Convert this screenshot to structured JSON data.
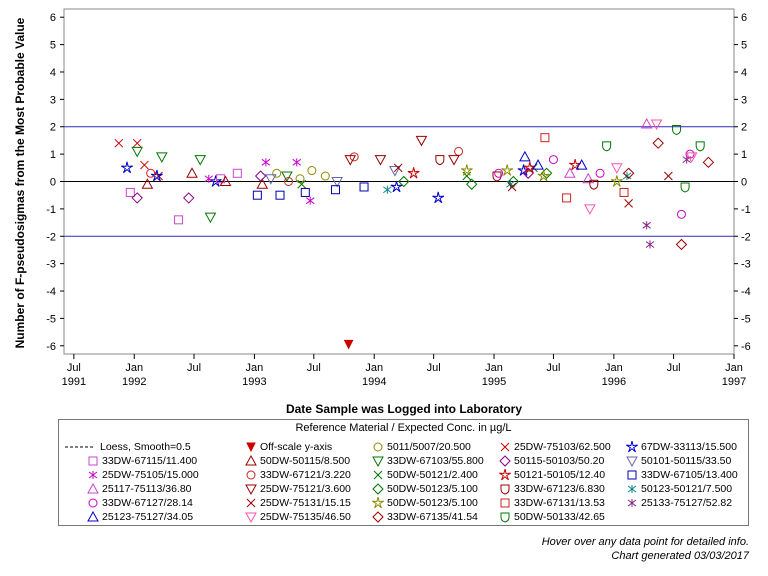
{
  "chart_data": {
    "type": "scatter",
    "title": "",
    "xlabel": "Date Sample was Logged into Laboratory",
    "ylabel": "Number of F-pseudosigmas from the Most Probable Value",
    "ylim": [
      -6.3,
      6.3
    ],
    "yticks": [
      -6,
      -5,
      -4,
      -3,
      -2,
      -1,
      0,
      1,
      2,
      3,
      4,
      5,
      6
    ],
    "xlim": [
      "1991-06-01",
      "1997-01-01"
    ],
    "xticks": [
      {
        "date": "1991-07-01",
        "month": "Jul",
        "year": "1991"
      },
      {
        "date": "1992-01-01",
        "month": "Jan",
        "year": "1992"
      },
      {
        "date": "1992-07-01",
        "month": "Jul",
        "year": ""
      },
      {
        "date": "1993-01-01",
        "month": "Jan",
        "year": "1993"
      },
      {
        "date": "1993-07-01",
        "month": "Jul",
        "year": ""
      },
      {
        "date": "1994-01-01",
        "month": "Jan",
        "year": "1994"
      },
      {
        "date": "1994-07-01",
        "month": "Jul",
        "year": ""
      },
      {
        "date": "1995-01-01",
        "month": "Jan",
        "year": "1995"
      },
      {
        "date": "1995-07-01",
        "month": "Jul",
        "year": ""
      },
      {
        "date": "1996-01-01",
        "month": "Jan",
        "year": "1996"
      },
      {
        "date": "1996-07-01",
        "month": "Jul",
        "year": ""
      },
      {
        "date": "1997-01-01",
        "month": "Jan",
        "year": "1997"
      }
    ],
    "reference_lines": [
      2,
      -2
    ],
    "zero_line": 0,
    "grid": false,
    "legend_title": "Reference Material / Expected Conc. in µg/L",
    "legend_placement": "bottom",
    "series": [
      {
        "name": "Loess, Smooth=0.5",
        "marker": "dash",
        "color": "#000000",
        "points": []
      },
      {
        "name": "Off-scale y-axis",
        "marker": "triangle-down-filled",
        "color": "#cc0000",
        "points": [
          [
            "1993-10-15",
            -5.95
          ]
        ]
      },
      {
        "name": "5011/5007/20.500",
        "marker": "circle",
        "color": "#8c8c00",
        "points": [
          [
            "1993-03-10",
            0.3
          ],
          [
            "1993-05-20",
            0.1
          ],
          [
            "1993-06-25",
            0.4
          ],
          [
            "1993-08-05",
            0.2
          ]
        ]
      },
      {
        "name": "25DW-75103/62.500",
        "marker": "x",
        "color": "#cc0000",
        "points": [
          [
            "1991-11-15",
            1.4
          ],
          [
            "1992-01-10",
            1.4
          ],
          [
            "1992-02-01",
            0.6
          ],
          [
            "1992-03-15",
            0.2
          ]
        ]
      },
      {
        "name": "67DW-33113/15.500",
        "marker": "star",
        "color": "#0000cc",
        "points": [
          [
            "1991-12-10",
            0.5
          ],
          [
            "1992-03-10",
            0.2
          ],
          [
            "1992-09-05",
            0.0
          ],
          [
            "1994-03-10",
            -0.2
          ],
          [
            "1994-07-15",
            -0.6
          ],
          [
            "1995-04-01",
            0.4
          ]
        ]
      },
      {
        "name": "33DW-67115/11.400",
        "marker": "square",
        "color": "#cc44cc",
        "points": [
          [
            "1991-12-20",
            -0.4
          ],
          [
            "1992-05-15",
            -1.4
          ],
          [
            "1992-09-20",
            0.1
          ],
          [
            "1992-11-10",
            0.3
          ]
        ]
      },
      {
        "name": "50DW-50115/8.500",
        "marker": "triangle",
        "color": "#990000",
        "points": [
          [
            "1992-02-10",
            -0.1
          ],
          [
            "1992-06-25",
            0.3
          ],
          [
            "1992-10-05",
            0.0
          ],
          [
            "1993-01-25",
            -0.1
          ]
        ]
      },
      {
        "name": "33DW-67103/55.800",
        "marker": "triangle-down",
        "color": "#007700",
        "points": [
          [
            "1992-01-10",
            1.1
          ],
          [
            "1992-03-25",
            0.9
          ],
          [
            "1992-07-20",
            0.8
          ],
          [
            "1992-08-20",
            -1.3
          ],
          [
            "1993-04-10",
            0.2
          ]
        ]
      },
      {
        "name": "50115-50103/50.20",
        "marker": "diamond",
        "color": "#880088",
        "points": [
          [
            "1992-01-10",
            -0.6
          ],
          [
            "1992-06-15",
            -0.6
          ],
          [
            "1993-01-20",
            0.2
          ],
          [
            "1995-04-15",
            0.3
          ]
        ]
      },
      {
        "name": "50101-50115/33.50",
        "marker": "triangle-down",
        "color": "#6666aa",
        "points": [
          [
            "1993-02-20",
            0.1
          ],
          [
            "1993-09-10",
            0.0
          ],
          [
            "1994-03-05",
            0.4
          ]
        ]
      },
      {
        "name": "25DW-75105/15.000",
        "marker": "asterisk",
        "color": "#cc00cc",
        "points": [
          [
            "1992-08-15",
            0.1
          ],
          [
            "1993-02-05",
            0.7
          ],
          [
            "1993-05-10",
            0.7
          ],
          [
            "1993-06-20",
            -0.7
          ]
        ]
      },
      {
        "name": "33DW-67121/3.220",
        "marker": "circle",
        "color": "#cc2222",
        "points": [
          [
            "1992-02-20",
            0.3
          ],
          [
            "1993-04-15",
            0.0
          ],
          [
            "1993-11-01",
            0.9
          ],
          [
            "1994-09-15",
            1.1
          ]
        ]
      },
      {
        "name": "50DW-50121/2.400",
        "marker": "x",
        "color": "#007700",
        "points": [
          [
            "1993-05-25",
            -0.1
          ],
          [
            "1994-10-10",
            0.2
          ],
          [
            "1995-05-01",
            0.5
          ]
        ]
      },
      {
        "name": "50121-50105/12.40",
        "marker": "star",
        "color": "#cc0000",
        "points": [
          [
            "1994-05-01",
            0.3
          ],
          [
            "1995-04-20",
            0.5
          ],
          [
            "1995-09-05",
            0.6
          ]
        ]
      },
      {
        "name": "33DW-67105/13.400",
        "marker": "square",
        "color": "#0000aa",
        "points": [
          [
            "1993-01-10",
            -0.5
          ],
          [
            "1993-03-20",
            -0.5
          ],
          [
            "1993-06-05",
            -0.4
          ],
          [
            "1993-09-05",
            -0.3
          ],
          [
            "1993-12-01",
            -0.2
          ]
        ]
      },
      {
        "name": "25117-75113/36.80",
        "marker": "triangle",
        "color": "#cc44cc",
        "points": [
          [
            "1995-08-20",
            0.3
          ],
          [
            "1995-10-15",
            0.1
          ],
          [
            "1996-04-10",
            2.1
          ]
        ]
      },
      {
        "name": "25DW-75121/3.600",
        "marker": "triangle-down",
        "color": "#990000",
        "points": [
          [
            "1993-10-20",
            0.8
          ],
          [
            "1994-01-20",
            0.8
          ],
          [
            "1994-05-25",
            1.5
          ],
          [
            "1994-09-01",
            0.8
          ]
        ]
      },
      {
        "name": "50DW-50123/5.100",
        "marker": "diamond",
        "color": "#007700",
        "points": [
          [
            "1994-04-01",
            0.0
          ],
          [
            "1994-10-25",
            -0.1
          ],
          [
            "1995-03-01",
            0.0
          ],
          [
            "1995-06-10",
            0.3
          ]
        ]
      },
      {
        "name": "33DW-67123/6.830",
        "marker": "shield",
        "color": "#990000",
        "points": [
          [
            "1994-07-20",
            0.8
          ],
          [
            "1995-01-10",
            0.2
          ],
          [
            "1995-11-01",
            -0.1
          ]
        ]
      },
      {
        "name": "50123-50121/7.500",
        "marker": "asterisk",
        "color": "#008888",
        "points": [
          [
            "1994-02-10",
            -0.3
          ],
          [
            "1995-02-20",
            -0.1
          ],
          [
            "1996-02-10",
            0.2
          ]
        ]
      },
      {
        "name": "33DW-67127/28.14",
        "marker": "circle",
        "color": "#cc00cc",
        "points": [
          [
            "1995-01-15",
            0.3
          ],
          [
            "1995-07-01",
            0.8
          ],
          [
            "1995-11-20",
            0.3
          ],
          [
            "1996-07-25",
            -1.2
          ],
          [
            "1996-08-20",
            1.0
          ]
        ]
      },
      {
        "name": "25DW-75131/15.15",
        "marker": "x",
        "color": "#990000",
        "points": [
          [
            "1994-03-15",
            0.5
          ],
          [
            "1995-02-25",
            -0.2
          ],
          [
            "1996-02-15",
            -0.8
          ],
          [
            "1996-06-15",
            0.2
          ]
        ]
      },
      {
        "name": "50DW-50123/5.100",
        "marker": "star",
        "color": "#8c8c00",
        "points": [
          [
            "1994-10-10",
            0.4
          ],
          [
            "1995-02-10",
            0.4
          ],
          [
            "1995-06-01",
            0.2
          ],
          [
            "1996-01-10",
            0.0
          ]
        ]
      },
      {
        "name": "33DW-67131/13.53",
        "marker": "square",
        "color": "#cc2222",
        "points": [
          [
            "1995-06-05",
            1.6
          ],
          [
            "1995-08-10",
            -0.6
          ],
          [
            "1996-02-01",
            -0.4
          ]
        ]
      },
      {
        "name": "25133-75127/52.82",
        "marker": "asterisk",
        "color": "#882288",
        "points": [
          [
            "1996-04-10",
            -1.6
          ],
          [
            "1996-04-20",
            -2.3
          ],
          [
            "1996-08-10",
            0.8
          ]
        ]
      },
      {
        "name": "25123-75127/34.05",
        "marker": "triangle",
        "color": "#0000cc",
        "points": [
          [
            "1995-04-05",
            0.9
          ],
          [
            "1995-05-15",
            0.6
          ],
          [
            "1995-09-25",
            0.6
          ]
        ]
      },
      {
        "name": "25DW-75135/46.50",
        "marker": "triangle-down",
        "color": "#ff55aa",
        "points": [
          [
            "1995-10-20",
            -1.0
          ],
          [
            "1996-01-10",
            0.5
          ],
          [
            "1996-05-10",
            2.1
          ],
          [
            "1996-08-25",
            0.9
          ]
        ]
      },
      {
        "name": "33DW-67135/41.54",
        "marker": "diamond",
        "color": "#990000",
        "points": [
          [
            "1996-02-15",
            0.3
          ],
          [
            "1996-05-15",
            1.4
          ],
          [
            "1996-07-25",
            -2.3
          ],
          [
            "1996-10-15",
            0.7
          ]
        ]
      },
      {
        "name": "50DW-50133/42.65",
        "marker": "shield",
        "color": "#007700",
        "points": [
          [
            "1995-12-10",
            1.3
          ],
          [
            "1996-07-10",
            1.9
          ],
          [
            "1996-09-20",
            1.3
          ],
          [
            "1996-08-05",
            -0.2
          ]
        ]
      }
    ]
  },
  "footnote": {
    "line1": "Hover over any data point for detailed info.",
    "line2": "Chart generated 03/03/2017"
  }
}
